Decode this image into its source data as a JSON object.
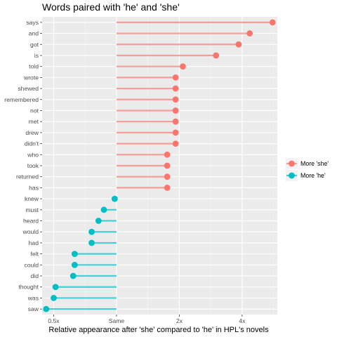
{
  "chart_data": {
    "type": "lollipop",
    "title": "Words paired with 'he' and 'she'",
    "xlabel": "Relative appearance after 'she' compared to 'he' in HPL's novels",
    "ylabel": "",
    "x_scale": "log2",
    "xlim": [
      0.44,
      5.9
    ],
    "x_ticks": [
      {
        "value": 0.5,
        "label": "0.5x"
      },
      {
        "value": 1,
        "label": "Same"
      },
      {
        "value": 2,
        "label": "2x"
      },
      {
        "value": 4,
        "label": "4x"
      }
    ],
    "baseline": 1,
    "grid": true,
    "legend_position": "right",
    "legend": [
      {
        "label": "More 'she'",
        "color": "#F8766D"
      },
      {
        "label": "More 'he'",
        "color": "#00BFC4"
      }
    ],
    "categories": [
      "says",
      "and",
      "got",
      "is",
      "told",
      "wrote",
      "shewed",
      "remembered",
      "not",
      "met",
      "drew",
      "didn't",
      "who",
      "took",
      "returned",
      "has",
      "knew",
      "must",
      "heard",
      "would",
      "had",
      "felt",
      "could",
      "did",
      "thought",
      "was",
      "saw"
    ],
    "values": [
      5.6,
      4.35,
      3.85,
      3.0,
      2.08,
      1.92,
      1.92,
      1.92,
      1.92,
      1.92,
      1.92,
      1.92,
      1.75,
      1.75,
      1.75,
      1.75,
      0.98,
      0.87,
      0.82,
      0.76,
      0.76,
      0.63,
      0.63,
      0.62,
      0.51,
      0.5,
      0.46
    ]
  }
}
